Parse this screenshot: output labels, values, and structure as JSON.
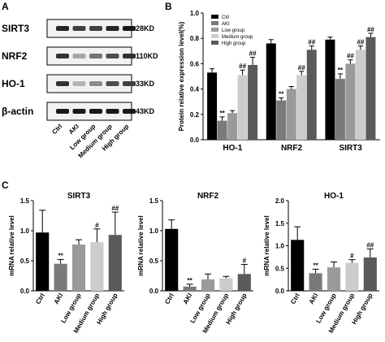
{
  "panels": {
    "a": "A",
    "b": "B",
    "c": "C"
  },
  "western_blot": {
    "bands": [
      {
        "name": "SIRT3",
        "size": "28KD",
        "intensity": [
          0.85,
          0.75,
          0.75,
          0.85,
          0.9
        ]
      },
      {
        "name": "NRF2",
        "size": "110KD",
        "intensity": [
          0.8,
          0.35,
          0.55,
          0.7,
          0.8
        ]
      },
      {
        "name": "HO-1",
        "size": "33KD",
        "intensity": [
          0.8,
          0.3,
          0.45,
          0.7,
          0.75
        ]
      },
      {
        "name": "β-actin",
        "size": "43KD",
        "intensity": [
          0.9,
          0.9,
          0.9,
          0.9,
          0.9
        ]
      }
    ],
    "lanes": [
      "Ctrl",
      "AKI",
      "Low group",
      "Medium group",
      "High group"
    ]
  },
  "colors": [
    "#000000",
    "#7a7a7a",
    "#9a9a9a",
    "#cccccc",
    "#5a5a5a"
  ],
  "chart_data": [
    {
      "type": "bar",
      "ylabel": "Protein relative expression level(%)",
      "ylim": [
        0,
        1.0
      ],
      "yticks": [
        "0.0",
        "0.2",
        "0.4",
        "0.6",
        "0.8",
        "1.0"
      ],
      "categories": [
        "HO-1",
        "NRF2",
        "SIRT3"
      ],
      "legend_position": "top-left",
      "series": [
        {
          "name": "Ctrl",
          "values": [
            0.53,
            0.76,
            0.79
          ],
          "errors": [
            0.03,
            0.03,
            0.02
          ],
          "marks": [
            "",
            "",
            ""
          ]
        },
        {
          "name": "AKI",
          "values": [
            0.15,
            0.31,
            0.48
          ],
          "errors": [
            0.03,
            0.02,
            0.04
          ],
          "marks": [
            "**",
            "**",
            "**"
          ]
        },
        {
          "name": "Low group",
          "values": [
            0.21,
            0.4,
            0.6
          ],
          "errors": [
            0.02,
            0.02,
            0.03
          ],
          "marks": [
            "",
            "",
            "##"
          ]
        },
        {
          "name": "Medium group",
          "values": [
            0.51,
            0.51,
            0.71
          ],
          "errors": [
            0.04,
            0.03,
            0.03
          ],
          "marks": [
            "##",
            "##",
            "##"
          ]
        },
        {
          "name": "High group",
          "values": [
            0.59,
            0.71,
            0.81
          ],
          "errors": [
            0.06,
            0.03,
            0.03
          ],
          "marks": [
            "##",
            "##",
            "##"
          ]
        }
      ]
    },
    {
      "type": "bar",
      "title": "SIRT3",
      "ylabel": "mRNA relative level",
      "ylim": [
        0,
        1.5
      ],
      "yticks": [
        "0.0",
        "0.5",
        "1.0",
        "1.5"
      ],
      "categories": [
        "Ctrl",
        "AKI",
        "Low group",
        "Medium group",
        "High group"
      ],
      "values": [
        0.97,
        0.45,
        0.77,
        0.81,
        0.93
      ],
      "errors": [
        0.37,
        0.07,
        0.08,
        0.22,
        0.38
      ],
      "marks": [
        "",
        "**",
        "",
        "#",
        "##"
      ]
    },
    {
      "type": "bar",
      "title": "NRF2",
      "ylabel": "mRNA relative level",
      "ylim": [
        0,
        1.5
      ],
      "yticks": [
        "0.0",
        "0.5",
        "1.0",
        "1.5"
      ],
      "categories": [
        "Ctrl",
        "AKI",
        "Low group",
        "Medium group",
        "High group"
      ],
      "values": [
        1.03,
        0.07,
        0.19,
        0.21,
        0.28
      ],
      "errors": [
        0.15,
        0.04,
        0.09,
        0.03,
        0.16
      ],
      "marks": [
        "",
        "**",
        "",
        "",
        "#"
      ]
    },
    {
      "type": "bar",
      "title": "HO-1",
      "ylabel": "mRNA relative level",
      "ylim": [
        0,
        2.0
      ],
      "yticks": [
        "0.0",
        "0.5",
        "1.0",
        "1.5",
        "2.0"
      ],
      "categories": [
        "Ctrl",
        "AKI",
        "Low group",
        "Medium group",
        "High group"
      ],
      "values": [
        1.13,
        0.39,
        0.52,
        0.62,
        0.74
      ],
      "errors": [
        0.29,
        0.09,
        0.12,
        0.07,
        0.19
      ],
      "marks": [
        "",
        "**",
        "",
        "#",
        "##"
      ]
    }
  ]
}
